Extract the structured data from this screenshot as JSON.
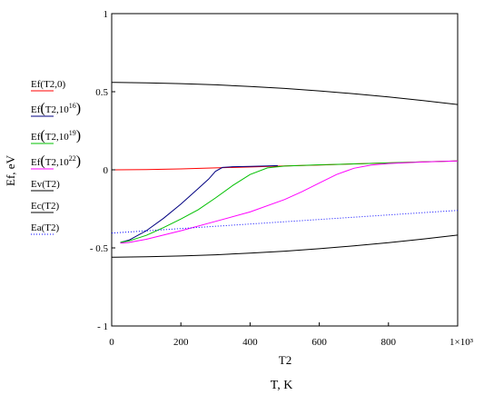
{
  "chart_data": {
    "type": "line",
    "xlabel": "T2",
    "xlabel_secondary": "T, K",
    "ylabel": "Ef, eV",
    "xlim": [
      0,
      1000
    ],
    "ylim": [
      -1,
      1
    ],
    "x_ticks": [
      "0",
      "200",
      "400",
      "600",
      "800",
      "1×10³"
    ],
    "y_ticks": [
      "1",
      "0.5",
      "0",
      "- 0.5",
      "- 1"
    ],
    "y_tick_values": [
      1,
      0.5,
      0,
      -0.5,
      -1
    ],
    "x_tick_values": [
      0,
      200,
      400,
      600,
      800,
      1000
    ],
    "grid": false,
    "legend_position": "left",
    "legend": [
      {
        "label": "Ef(T2,0)",
        "base": "Ef",
        "args": "T2,0",
        "exp": "",
        "color": "#ff0000",
        "style": "solid",
        "big_paren": false
      },
      {
        "label": "Ef(T2,10^16)",
        "base": "Ef",
        "args": "T2,10",
        "exp": "16",
        "color": "#000080",
        "style": "solid",
        "big_paren": true
      },
      {
        "label": "Ef(T2,10^19)",
        "base": "Ef",
        "args": "T2,10",
        "exp": "19",
        "color": "#00c000",
        "style": "solid",
        "big_paren": true
      },
      {
        "label": "Ef(T2,10^22)",
        "base": "Ef",
        "args": "T2,10",
        "exp": "22",
        "color": "#ff00ff",
        "style": "solid",
        "big_paren": true
      },
      {
        "label": "Ev(T2)",
        "base": "Ev",
        "args": "T2",
        "exp": "",
        "color": "#000000",
        "style": "solid",
        "big_paren": false
      },
      {
        "label": "Ec(T2)",
        "base": "Ec",
        "args": "T2",
        "exp": "",
        "color": "#000000",
        "style": "solid",
        "big_paren": false
      },
      {
        "label": "Ea(T2)",
        "base": "Ea",
        "args": "T2",
        "exp": "",
        "color": "#0000ff",
        "style": "dotted",
        "big_paren": false
      }
    ],
    "series": [
      {
        "name": "Ef(T2,0)",
        "color": "#ff0000",
        "style": "solid",
        "x": [
          0,
          100,
          200,
          300,
          400,
          500,
          600,
          700,
          800,
          900,
          1000
        ],
        "y": [
          0.0,
          0.002,
          0.006,
          0.012,
          0.018,
          0.025,
          0.031,
          0.038,
          0.044,
          0.051,
          0.057
        ]
      },
      {
        "name": "Ef(T2,10^16)",
        "color": "#000080",
        "style": "solid",
        "x": [
          25,
          50,
          100,
          150,
          200,
          250,
          280,
          300,
          320,
          350,
          400,
          450,
          480
        ],
        "y": [
          -0.465,
          -0.45,
          -0.39,
          -0.31,
          -0.22,
          -0.12,
          -0.06,
          -0.01,
          0.015,
          0.02,
          0.022,
          0.025,
          0.027
        ]
      },
      {
        "name": "Ef(T2,10^19)",
        "color": "#00c000",
        "style": "solid",
        "x": [
          25,
          50,
          100,
          150,
          200,
          250,
          300,
          350,
          400,
          450,
          500,
          600,
          700,
          800,
          900,
          1000
        ],
        "y": [
          -0.465,
          -0.455,
          -0.42,
          -0.37,
          -0.315,
          -0.255,
          -0.18,
          -0.1,
          -0.03,
          0.012,
          0.024,
          0.032,
          0.038,
          0.044,
          0.051,
          0.057
        ]
      },
      {
        "name": "Ef(T2,10^22)",
        "color": "#ff00ff",
        "style": "solid",
        "x": [
          25,
          50,
          100,
          200,
          300,
          400,
          500,
          550,
          600,
          650,
          700,
          750,
          800,
          900,
          1000
        ],
        "y": [
          -0.47,
          -0.465,
          -0.445,
          -0.39,
          -0.33,
          -0.27,
          -0.19,
          -0.14,
          -0.085,
          -0.03,
          0.01,
          0.03,
          0.04,
          0.05,
          0.057
        ]
      },
      {
        "name": "Ev(T2)",
        "color": "#000000",
        "style": "solid",
        "x": [
          0,
          100,
          200,
          300,
          400,
          500,
          600,
          700,
          800,
          900,
          1000
        ],
        "y": [
          0.56,
          0.557,
          0.552,
          0.544,
          0.534,
          0.521,
          0.505,
          0.487,
          0.466,
          0.443,
          0.418
        ]
      },
      {
        "name": "Ec(T2)",
        "color": "#000000",
        "style": "solid",
        "x": [
          0,
          100,
          200,
          300,
          400,
          500,
          600,
          700,
          800,
          900,
          1000
        ],
        "y": [
          -0.56,
          -0.557,
          -0.552,
          -0.544,
          -0.534,
          -0.521,
          -0.505,
          -0.487,
          -0.466,
          -0.443,
          -0.418
        ]
      },
      {
        "name": "Ea(T2)",
        "color": "#0000ff",
        "style": "dotted",
        "x": [
          0,
          1000
        ],
        "y": [
          -0.405,
          -0.26
        ]
      }
    ]
  }
}
